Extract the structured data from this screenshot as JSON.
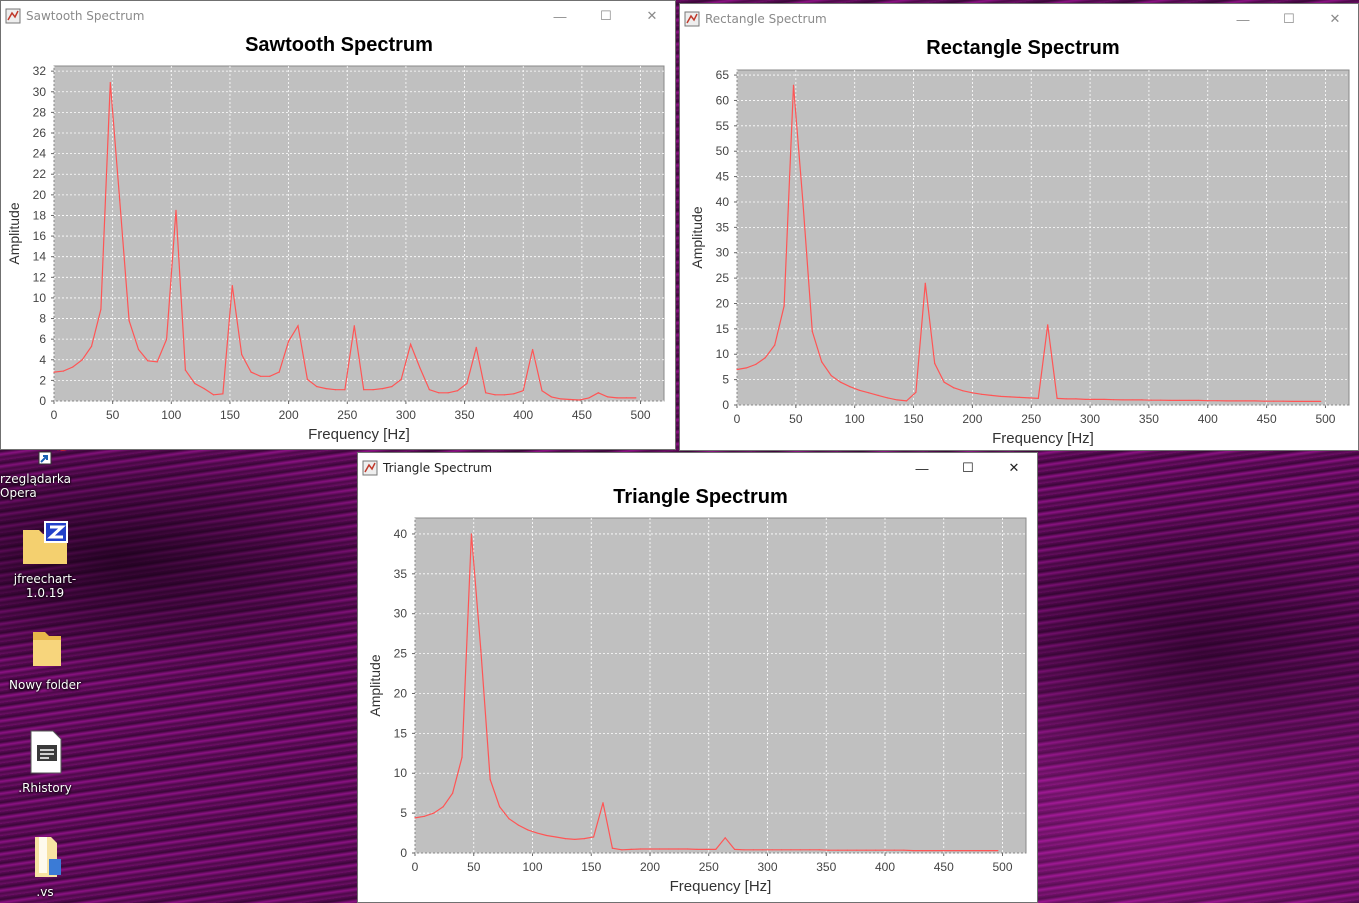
{
  "desktop": {
    "icons": [
      {
        "label": "rzeglądarka Opera",
        "icon": "opera-shortcut-icon"
      },
      {
        "label": "jfreechart-1.0.19",
        "icon": "zip-folder-icon"
      },
      {
        "label": "Nowy folder",
        "icon": "folder-icon"
      },
      {
        "label": ".Rhistory",
        "icon": "document-icon"
      },
      {
        "label": ".vs",
        "icon": "folder-icon"
      }
    ]
  },
  "windows": [
    {
      "id": "sawtooth",
      "title": "Sawtooth Spectrum",
      "active": false,
      "chart_data": {
        "type": "line",
        "title": "Sawtooth Spectrum",
        "xlabel": "Frequency [Hz]",
        "ylabel": "Amplitude",
        "xlim": [
          0,
          520
        ],
        "ylim": [
          0,
          32.5
        ],
        "xticks": [
          0,
          50,
          100,
          150,
          200,
          250,
          300,
          350,
          400,
          450,
          500
        ],
        "yticks": [
          0,
          2,
          4,
          6,
          8,
          10,
          12,
          14,
          16,
          18,
          20,
          22,
          24,
          26,
          28,
          30,
          32
        ],
        "grid": true,
        "series": [
          {
            "color": "#ff5555",
            "x": [
              0,
              8,
              16,
              24,
              32,
              40,
              48,
              56,
              64,
              72,
              80,
              88,
              96,
              104,
              112,
              120,
              128,
              136,
              144,
              152,
              160,
              168,
              176,
              184,
              192,
              200,
              208,
              216,
              224,
              232,
              240,
              248,
              256,
              264,
              272,
              280,
              288,
              296,
              304,
              312,
              320,
              328,
              336,
              344,
              352,
              360,
              368,
              376,
              384,
              392,
              400,
              408,
              416,
              424,
              432,
              440,
              448,
              456,
              464,
              472,
              480,
              488,
              496
            ],
            "y": [
              2.8,
              2.9,
              3.3,
              4.0,
              5.3,
              8.9,
              30.9,
              19.5,
              7.8,
              5.0,
              3.9,
              3.8,
              6.0,
              18.5,
              3.0,
              1.7,
              1.2,
              0.6,
              0.7,
              11.2,
              4.5,
              2.8,
              2.4,
              2.4,
              2.8,
              5.8,
              7.3,
              2.1,
              1.4,
              1.2,
              1.1,
              1.1,
              7.3,
              1.1,
              1.1,
              1.2,
              1.4,
              2.1,
              5.5,
              3.2,
              1.1,
              0.8,
              0.8,
              1.0,
              1.7,
              5.2,
              0.8,
              0.6,
              0.6,
              0.7,
              1.0,
              5.0,
              1.0,
              0.4,
              0.2,
              0.15,
              0.1,
              0.3,
              0.8,
              0.4,
              0.3,
              0.3,
              0.3
            ]
          }
        ]
      }
    },
    {
      "id": "rectangle",
      "title": "Rectangle Spectrum",
      "active": false,
      "chart_data": {
        "type": "line",
        "title": "Rectangle Spectrum",
        "xlabel": "Frequency [Hz]",
        "ylabel": "Amplitude",
        "xlim": [
          0,
          520
        ],
        "ylim": [
          0,
          66
        ],
        "xticks": [
          0,
          50,
          100,
          150,
          200,
          250,
          300,
          350,
          400,
          450,
          500
        ],
        "yticks": [
          0,
          5,
          10,
          15,
          20,
          25,
          30,
          35,
          40,
          45,
          50,
          55,
          60,
          65
        ],
        "grid": true,
        "series": [
          {
            "color": "#ff5555",
            "x": [
              0,
              8,
              16,
              24,
              32,
              40,
              48,
              56,
              64,
              72,
              80,
              88,
              96,
              104,
              112,
              120,
              128,
              136,
              144,
              152,
              160,
              168,
              176,
              184,
              192,
              200,
              208,
              216,
              224,
              232,
              240,
              248,
              256,
              264,
              272,
              280,
              288,
              296,
              304,
              312,
              320,
              328,
              336,
              344,
              352,
              360,
              368,
              376,
              384,
              392,
              400,
              408,
              416,
              424,
              432,
              440,
              448,
              456,
              464,
              472,
              480,
              488,
              496
            ],
            "y": [
              7.0,
              7.3,
              8.0,
              9.3,
              11.8,
              19.5,
              63.0,
              40.0,
              14.5,
              8.5,
              5.8,
              4.5,
              3.6,
              2.9,
              2.4,
              1.9,
              1.4,
              1.0,
              0.8,
              2.5,
              24.0,
              8.2,
              4.5,
              3.4,
              2.8,
              2.4,
              2.1,
              1.9,
              1.7,
              1.6,
              1.5,
              1.4,
              1.3,
              15.8,
              1.3,
              1.2,
              1.2,
              1.1,
              1.1,
              1.1,
              1.05,
              1.0,
              1.0,
              1.0,
              0.95,
              0.95,
              0.9,
              0.9,
              0.9,
              0.9,
              0.85,
              0.85,
              0.8,
              0.8,
              0.8,
              0.8,
              0.75,
              0.75,
              0.75,
              0.7,
              0.7,
              0.7,
              0.7
            ]
          }
        ]
      }
    },
    {
      "id": "triangle",
      "title": "Triangle Spectrum",
      "active": true,
      "chart_data": {
        "type": "line",
        "title": "Triangle Spectrum",
        "xlabel": "Frequency [Hz]",
        "ylabel": "Amplitude",
        "xlim": [
          0,
          520
        ],
        "ylim": [
          0,
          42
        ],
        "xticks": [
          0,
          50,
          100,
          150,
          200,
          250,
          300,
          350,
          400,
          450,
          500
        ],
        "yticks": [
          0,
          5,
          10,
          15,
          20,
          25,
          30,
          35,
          40
        ],
        "grid": true,
        "series": [
          {
            "color": "#ff5555",
            "x": [
              0,
              8,
              16,
              24,
              32,
              40,
              48,
              56,
              64,
              72,
              80,
              88,
              96,
              104,
              112,
              120,
              128,
              136,
              144,
              152,
              160,
              168,
              176,
              184,
              192,
              200,
              208,
              216,
              224,
              232,
              240,
              248,
              256,
              264,
              272,
              280,
              288,
              296,
              304,
              312,
              320,
              328,
              336,
              344,
              352,
              360,
              368,
              376,
              384,
              392,
              400,
              408,
              416,
              424,
              432,
              440,
              448,
              456,
              464,
              472,
              480,
              488,
              496
            ],
            "y": [
              4.4,
              4.6,
              5.0,
              5.8,
              7.5,
              12.0,
              40.0,
              25.5,
              9.2,
              5.8,
              4.3,
              3.5,
              2.9,
              2.5,
              2.2,
              2.0,
              1.8,
              1.7,
              1.8,
              2.0,
              6.3,
              0.6,
              0.4,
              0.45,
              0.5,
              0.5,
              0.5,
              0.5,
              0.5,
              0.5,
              0.45,
              0.45,
              0.45,
              1.9,
              0.45,
              0.4,
              0.4,
              0.4,
              0.4,
              0.4,
              0.4,
              0.4,
              0.4,
              0.4,
              0.35,
              0.35,
              0.35,
              0.35,
              0.35,
              0.35,
              0.35,
              0.35,
              0.35,
              0.3,
              0.3,
              0.3,
              0.3,
              0.3,
              0.3,
              0.3,
              0.3,
              0.3,
              0.3
            ]
          }
        ]
      }
    }
  ]
}
